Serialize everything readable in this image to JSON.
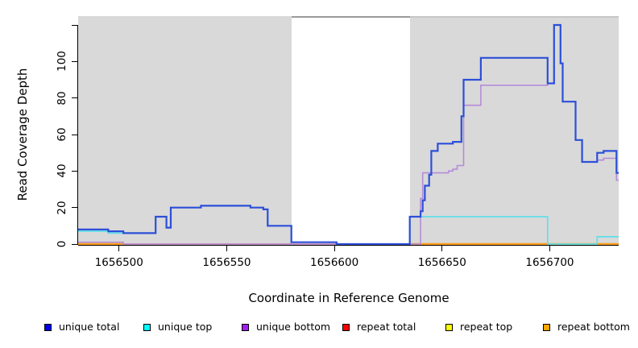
{
  "figure": {
    "xlabel": "Coordinate in Reference Genome",
    "ylabel": "Read Coverage Depth"
  },
  "chart_data": {
    "type": "line",
    "subtype": "step",
    "title": "",
    "xlabel": "Coordinate in Reference Genome",
    "ylabel": "Read Coverage Depth",
    "xlim": [
      1656481,
      1656732
    ],
    "ylim": [
      0,
      124
    ],
    "grid": "off",
    "legend_position": "bottom",
    "x_ticks": [
      {
        "v": 1656500,
        "label": "1656500"
      },
      {
        "v": 1656550,
        "label": "1656550"
      },
      {
        "v": 1656600,
        "label": "1656600"
      },
      {
        "v": 1656650,
        "label": "1656650"
      },
      {
        "v": 1656700,
        "label": "1656700"
      }
    ],
    "y_ticks": [
      {
        "v": 0,
        "label": "0"
      },
      {
        "v": 20,
        "label": "20"
      },
      {
        "v": 40,
        "label": "40"
      },
      {
        "v": 60,
        "label": "60"
      },
      {
        "v": 80,
        "label": "80"
      },
      {
        "v": 100,
        "label": "100"
      },
      {
        "v": 120,
        "label": ""
      }
    ],
    "shaded_regions": [
      {
        "start": 1656481,
        "end": 1656580,
        "color": "#d9d9d9"
      },
      {
        "start": 1656635,
        "end": 1656732,
        "color": "#d9d9d9",
        "top_border_color": "#c6c6c6"
      }
    ],
    "gap_region": {
      "start": 1656580,
      "end": 1656635,
      "color": "#ffffff",
      "top_border_color": "#9a9a9a"
    },
    "series": [
      {
        "name": "repeat top",
        "color": "#ffff00",
        "width": 1.2,
        "values": [
          [
            1656481,
            0
          ]
        ]
      },
      {
        "name": "repeat total",
        "color": "#e04b63",
        "width": 1.6,
        "values": [
          [
            1656481,
            0
          ]
        ]
      },
      {
        "name": "repeat bottom",
        "color": "#ff9d1c",
        "width": 2.4,
        "values": [
          [
            1656481,
            0
          ],
          [
            1656502,
            null
          ],
          [
            1656635,
            0
          ]
        ]
      },
      {
        "name": "unique top",
        "color": "#5fe0ea",
        "width": 1.7,
        "values": [
          [
            1656481,
            7
          ],
          [
            1656495,
            6
          ],
          [
            1656502,
            6
          ],
          [
            1656517,
            15
          ],
          [
            1656522,
            9
          ],
          [
            1656524,
            20
          ],
          [
            1656538,
            21
          ],
          [
            1656561,
            20
          ],
          [
            1656567,
            19
          ],
          [
            1656569,
            10
          ],
          [
            1656580,
            1
          ],
          [
            1656601,
            0
          ],
          [
            1656635,
            15
          ],
          [
            1656699,
            0
          ],
          [
            1656722,
            4
          ]
        ]
      },
      {
        "name": "unique bottom",
        "color": "#b48cd8",
        "width": 1.6,
        "values": [
          [
            1656481,
            1
          ],
          [
            1656502,
            0
          ],
          [
            1656640,
            25
          ],
          [
            1656641,
            39
          ],
          [
            1656653,
            40
          ],
          [
            1656655,
            41
          ],
          [
            1656657,
            43
          ],
          [
            1656660,
            76
          ],
          [
            1656668,
            87
          ],
          [
            1656699,
            88
          ],
          [
            1656702,
            120
          ],
          [
            1656705,
            99
          ],
          [
            1656706,
            78
          ],
          [
            1656712,
            57
          ],
          [
            1656715,
            45
          ],
          [
            1656722,
            46
          ],
          [
            1656725,
            47
          ],
          [
            1656731,
            35
          ]
        ]
      },
      {
        "name": "unique total",
        "color": "#2c4fd8",
        "width": 2.2,
        "values": [
          [
            1656481,
            8
          ],
          [
            1656495,
            7
          ],
          [
            1656502,
            6
          ],
          [
            1656517,
            15
          ],
          [
            1656522,
            9
          ],
          [
            1656524,
            20
          ],
          [
            1656538,
            21
          ],
          [
            1656561,
            20
          ],
          [
            1656567,
            19
          ],
          [
            1656569,
            10
          ],
          [
            1656580,
            1
          ],
          [
            1656601,
            0
          ],
          [
            1656635,
            15
          ],
          [
            1656640,
            18
          ],
          [
            1656641,
            24
          ],
          [
            1656642,
            32
          ],
          [
            1656644,
            38
          ],
          [
            1656645,
            51
          ],
          [
            1656648,
            55
          ],
          [
            1656655,
            56
          ],
          [
            1656659,
            70
          ],
          [
            1656660,
            90
          ],
          [
            1656668,
            102
          ],
          [
            1656699,
            88
          ],
          [
            1656702,
            120
          ],
          [
            1656705,
            99
          ],
          [
            1656706,
            78
          ],
          [
            1656712,
            57
          ],
          [
            1656715,
            45
          ],
          [
            1656722,
            50
          ],
          [
            1656725,
            51
          ],
          [
            1656731,
            39
          ]
        ]
      }
    ]
  },
  "legend": {
    "items": [
      {
        "label": "unique total",
        "color": "#0000ee"
      },
      {
        "label": "unique top",
        "color": "#00ffff"
      },
      {
        "label": "unique bottom",
        "color": "#a020f0"
      },
      {
        "label": "repeat total",
        "color": "#ff0000"
      },
      {
        "label": "repeat top",
        "color": "#ffff00"
      },
      {
        "label": "repeat bottom",
        "color": "#ffa500"
      }
    ]
  }
}
